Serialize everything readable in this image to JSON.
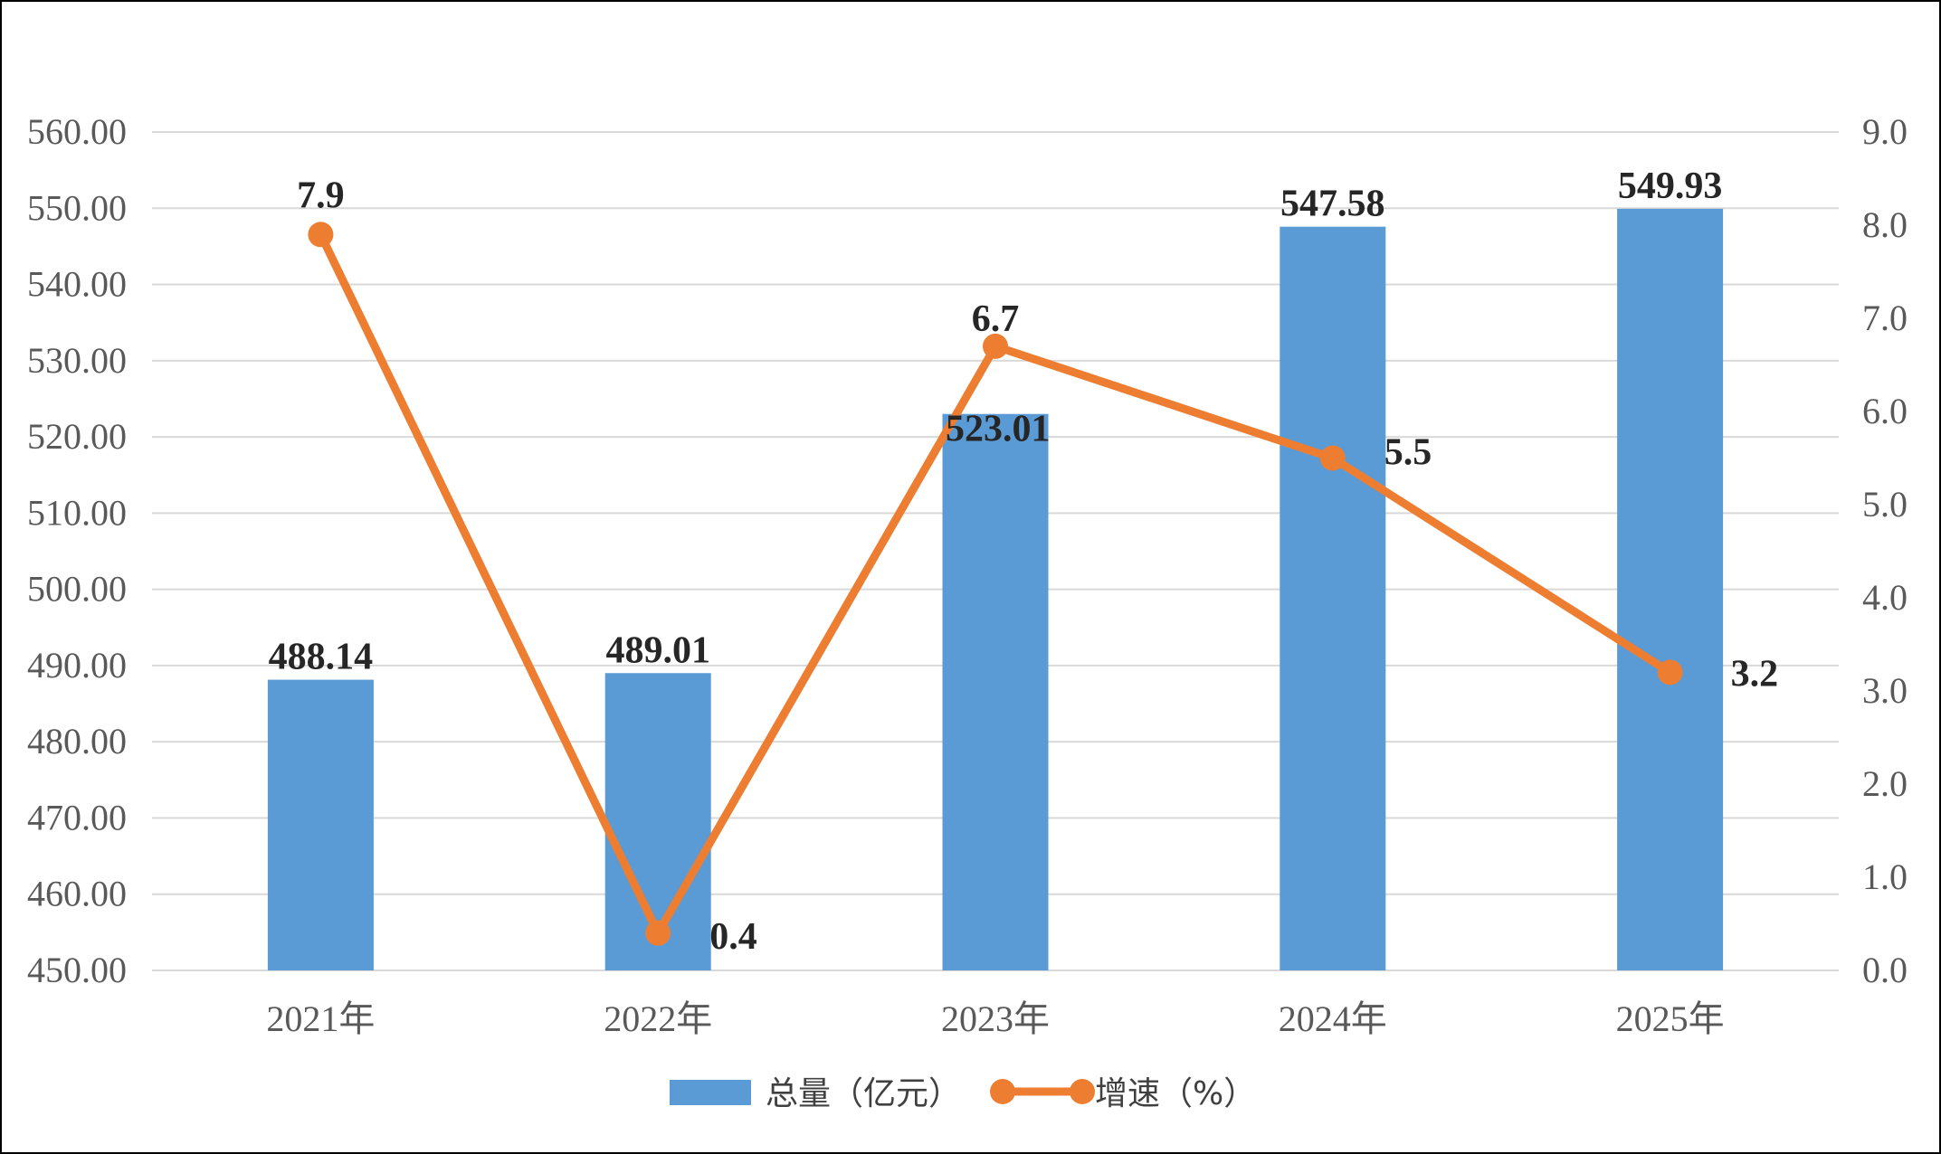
{
  "chart_data": {
    "type": "bar",
    "categories": [
      "2021年",
      "2022年",
      "2023年",
      "2024年",
      "2025年"
    ],
    "series": [
      {
        "name": "总量（亿元）",
        "type": "bar",
        "axis": "left",
        "color": "#5B9BD5",
        "values": [
          488.14,
          489.01,
          523.01,
          547.58,
          549.93
        ],
        "labels": [
          "488.14",
          "489.01",
          "523.01",
          "547.58",
          "549.93"
        ]
      },
      {
        "name": "增速（%）",
        "type": "line",
        "axis": "right",
        "color": "#ED7D31",
        "values": [
          7.9,
          0.4,
          6.7,
          5.5,
          3.2
        ],
        "labels": [
          "7.9",
          "0.4",
          "6.7",
          "5.5",
          "3.2"
        ]
      }
    ],
    "y_left": {
      "ylim": [
        450,
        560
      ],
      "step": 10,
      "ticks": [
        "450.00",
        "460.00",
        "470.00",
        "480.00",
        "490.00",
        "500.00",
        "510.00",
        "520.00",
        "530.00",
        "540.00",
        "550.00",
        "560.00"
      ]
    },
    "y_right": {
      "ylim": [
        0,
        9
      ],
      "step": 1,
      "ticks": [
        "0.0",
        "1.0",
        "2.0",
        "3.0",
        "4.0",
        "5.0",
        "6.0",
        "7.0",
        "8.0",
        "9.0"
      ]
    },
    "grid": true,
    "legend": "bottom",
    "colors": {
      "grid": "#D9D9D9",
      "tick_text": "#595959",
      "label_text": "#262626"
    }
  }
}
